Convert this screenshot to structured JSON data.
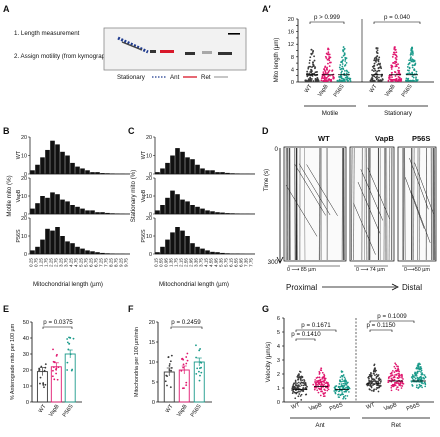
{
  "panels": {
    "A": {
      "label": "A",
      "steps": [
        "1. Length measurement",
        "2. Assign motility (from kymograph)"
      ],
      "legend": [
        {
          "name": "Stationary",
          "color": "#1f3b8f"
        },
        {
          "name": "Ant",
          "color": "#d8182a"
        },
        {
          "name": "Ret",
          "color": "#a8a8a8"
        }
      ]
    },
    "A2": {
      "label": "A′",
      "ylabel": "Mito length (µm)",
      "yticks": [
        "0",
        "2",
        "4",
        "6",
        "8",
        "10",
        "12",
        "14",
        "16",
        "18",
        "20"
      ],
      "groups": [
        "Motile",
        "Stationary"
      ],
      "genotypes": [
        "WT",
        "VapB",
        "P56S"
      ],
      "pvalues": [
        "p > 0.999",
        "p = 0.040"
      ]
    },
    "B": {
      "label": "B",
      "ylabel": "Motile mito (%)",
      "xlabel": "Mitochondrial length (µm)",
      "rows": [
        "WT",
        "VapB",
        "P56S"
      ],
      "yticks": [
        "0",
        "5",
        "10",
        "15",
        "20"
      ],
      "xticks": [
        "0.25",
        "0.75",
        "1.25",
        "1.75",
        "2.25",
        "2.75",
        "3.25",
        "3.75",
        "4.25",
        "4.75",
        "5.25",
        "5.75",
        "6.25",
        "6.75",
        "7.25",
        "7.75",
        "8.25",
        "8.75",
        "9.25",
        "9.75"
      ]
    },
    "C": {
      "label": "C",
      "ylabel": "Stationary mito (%)",
      "xlabel": "Mitochondrial length (µm)",
      "rows": [
        "WT",
        "VapB",
        "P56S"
      ],
      "yticks": [
        "0",
        "5",
        "10",
        "15",
        "20"
      ],
      "xticks": [
        "0.15",
        "0.55",
        "0.95",
        "1.35",
        "1.75",
        "2.15",
        "2.55",
        "2.95",
        "3.35",
        "3.75",
        "4.15",
        "4.55",
        "4.95",
        "5.35",
        "5.75",
        "6.15",
        "6.55",
        "6.95",
        "7.35",
        "7.75"
      ]
    },
    "D": {
      "label": "D",
      "columns": [
        "WT",
        "VapB",
        "P56S"
      ],
      "ylabel": "Time (s)",
      "ytop": "0",
      "ybottom": "300",
      "scales": [
        "0 ⟶ 85 µm",
        "0 ⟶ 74 µm",
        "0⟶50 µm"
      ],
      "axis": [
        "Proximal",
        "Distal"
      ]
    },
    "E": {
      "label": "E",
      "ylabel": "% Anterograde mito per 100 µm",
      "yticks": [
        "0",
        "10",
        "20",
        "30",
        "40",
        "50"
      ],
      "genotypes": [
        "WT",
        "VapB",
        "P56S"
      ],
      "pvalue": "p = 0.0375"
    },
    "F": {
      "label": "F",
      "ylabel": "Mitochondria per 100 µm/min",
      "yticks": [
        "0",
        "5",
        "10",
        "15",
        "20"
      ],
      "genotypes": [
        "WT",
        "VapB",
        "P56S"
      ],
      "pvalue": "p = 0.2459"
    },
    "G": {
      "label": "G",
      "ylabel": "Velocity (µm/s)",
      "yticks": [
        "0",
        "1",
        "2",
        "3",
        "4",
        "5",
        "6"
      ],
      "genotypes": [
        "WT",
        "VapB",
        "P56S",
        "WT",
        "VapB",
        "P56S"
      ],
      "groups": [
        "Ant",
        "Ret"
      ],
      "pvalues": [
        "p = 0.1410",
        "p = 0.1671",
        "p = 0.1150",
        "p = 0.1009"
      ]
    }
  },
  "colors": {
    "wt": "#3a3a3a",
    "vapb": "#e0176e",
    "p56s": "#1a9a8a"
  }
}
